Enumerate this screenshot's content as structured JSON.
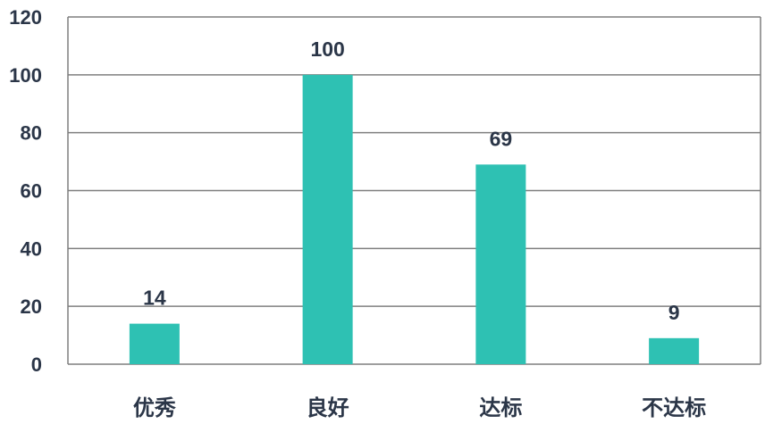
{
  "chart_data": {
    "type": "bar",
    "categories": [
      "优秀",
      "良好",
      "达标",
      "不达标"
    ],
    "values": [
      14,
      100,
      69,
      9
    ],
    "ylim": [
      0,
      120
    ],
    "yticks": [
      0,
      20,
      40,
      60,
      80,
      100,
      120
    ],
    "grid": true,
    "bar_color": "#2ec1b3",
    "text_color": "#2b3648",
    "grid_color": "#7f7f7f"
  }
}
